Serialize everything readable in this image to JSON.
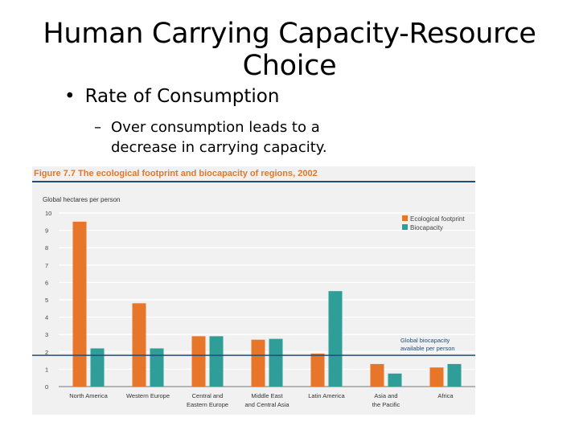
{
  "slide": {
    "title": "Human Carrying Capacity-Resource Choice",
    "bullet": "Rate of Consumption",
    "sub_bullet": "Over consumption leads to a decrease in carrying capacity.",
    "bullet_symbol": "•",
    "dash_symbol": "–"
  },
  "colors": {
    "ecological_footprint": "#e8762a",
    "biocapacity": "#2f9e98",
    "reference_line": "#1f4e79",
    "figure_title": "#e0782a"
  },
  "chart_data": {
    "type": "bar",
    "title": "Figure 7.7 The ecological footprint and biocapacity of regions, 2002",
    "ylabel": "Global hectares per person",
    "xlabel": "",
    "ylim": [
      0,
      10
    ],
    "yticks": [
      "0",
      "1",
      "2",
      "3",
      "4",
      "5",
      "6",
      "7",
      "8",
      "9",
      "10"
    ],
    "categories": [
      [
        "North America"
      ],
      [
        "Western Europe"
      ],
      [
        "Central and",
        "Eastern Europe"
      ],
      [
        "Middle East",
        "and Central Asia"
      ],
      [
        "Latin America"
      ],
      [
        "Asia and",
        "the Pacific"
      ],
      [
        "Africa"
      ]
    ],
    "series": [
      {
        "name": "Ecological footprint",
        "values": [
          9.5,
          4.8,
          2.9,
          2.7,
          1.9,
          1.3,
          1.1
        ]
      },
      {
        "name": "Biocapacity",
        "values": [
          2.2,
          2.2,
          2.9,
          2.75,
          5.5,
          0.75,
          1.3
        ]
      }
    ],
    "reference_line": {
      "value": 1.8,
      "label": [
        "Global biocapacity",
        "available per person"
      ]
    },
    "legend": "top-right",
    "grid": true
  }
}
